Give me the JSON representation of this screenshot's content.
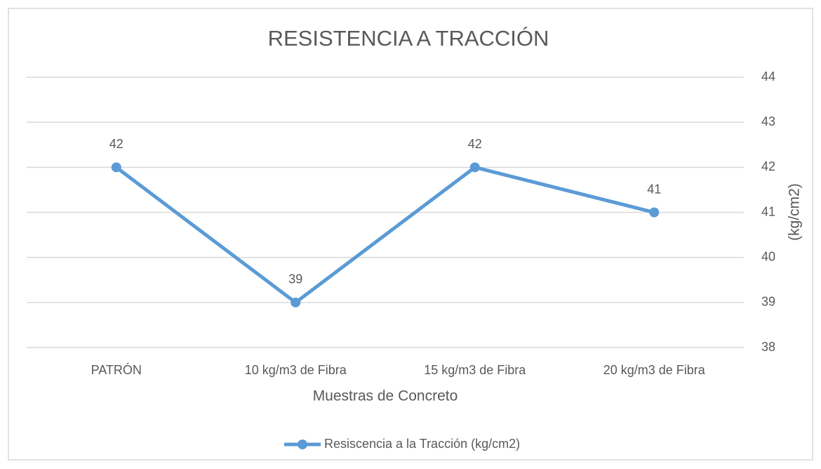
{
  "chart_data": {
    "type": "line",
    "title": "RESISTENCIA A TRACCIÓN",
    "x_label": "Muestras de Concreto",
    "y_label": "(kg/cm2)",
    "categories": [
      "PATRÓN",
      "10 kg/m3 de Fibra",
      "15 kg/m3 de Fibra",
      "20 kg/m3 de Fibra"
    ],
    "series": [
      {
        "name": "Resiscencia a la Tracción (kg/cm2)",
        "color": "#5b9bd5",
        "values": [
          42,
          39,
          42,
          41
        ]
      }
    ],
    "ylim": [
      38,
      44
    ],
    "yticks": [
      38,
      39,
      40,
      41,
      42,
      43,
      44
    ],
    "y_axis_side": "right",
    "grid": true,
    "legend": "bottom",
    "data_labels": true
  }
}
